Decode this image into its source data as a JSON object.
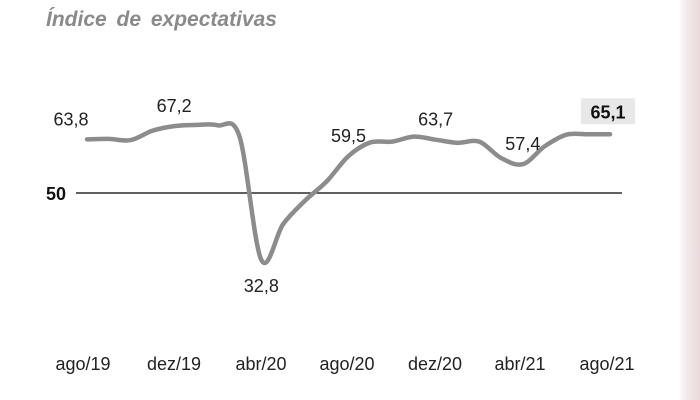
{
  "chart_data": {
    "type": "line",
    "title": "Índice de expectativas",
    "xlabel": "",
    "ylabel": "",
    "x_ticks": [
      "ago/19",
      "dez/19",
      "abr/20",
      "ago/20",
      "dez/20",
      "abr/21",
      "ago/21"
    ],
    "reference_line": {
      "value": 50,
      "label": "50"
    },
    "ylim": [
      30,
      70
    ],
    "grid": false,
    "series": [
      {
        "x": [
          "ago/19",
          "set/19",
          "out/19",
          "nov/19",
          "dez/19",
          "jan/20",
          "fev/20",
          "mar/20",
          "abr/20",
          "mai/20",
          "jun/20",
          "jul/20",
          "ago/20",
          "set/20",
          "out/20",
          "nov/20",
          "dez/20",
          "jan/21",
          "fev/21",
          "mar/21",
          "abr/21",
          "mai/21",
          "jun/21",
          "jul/21",
          "ago/21"
        ],
        "values": [
          63.8,
          63.9,
          63.6,
          66.0,
          67.2,
          67.5,
          67.4,
          64.5,
          32.8,
          42.0,
          48.0,
          53.0,
          59.5,
          63.0,
          63.2,
          64.5,
          63.7,
          62.9,
          63.2,
          59.0,
          57.4,
          62.0,
          65.0,
          65.1,
          65.1
        ]
      }
    ],
    "data_labels": [
      {
        "index": 0,
        "text": "63,8"
      },
      {
        "index": 4,
        "text": "67,2"
      },
      {
        "index": 8,
        "text": "32,8"
      },
      {
        "index": 12,
        "text": "59,5"
      },
      {
        "index": 16,
        "text": "63,7"
      },
      {
        "index": 20,
        "text": "57,4"
      },
      {
        "index": 24,
        "text": "65,1",
        "highlight": true
      }
    ],
    "colors": {
      "line": "#8c8c8c",
      "reference": "#000000",
      "highlight_bg": "#e8e8e8",
      "title": "#8a8a8a"
    }
  }
}
